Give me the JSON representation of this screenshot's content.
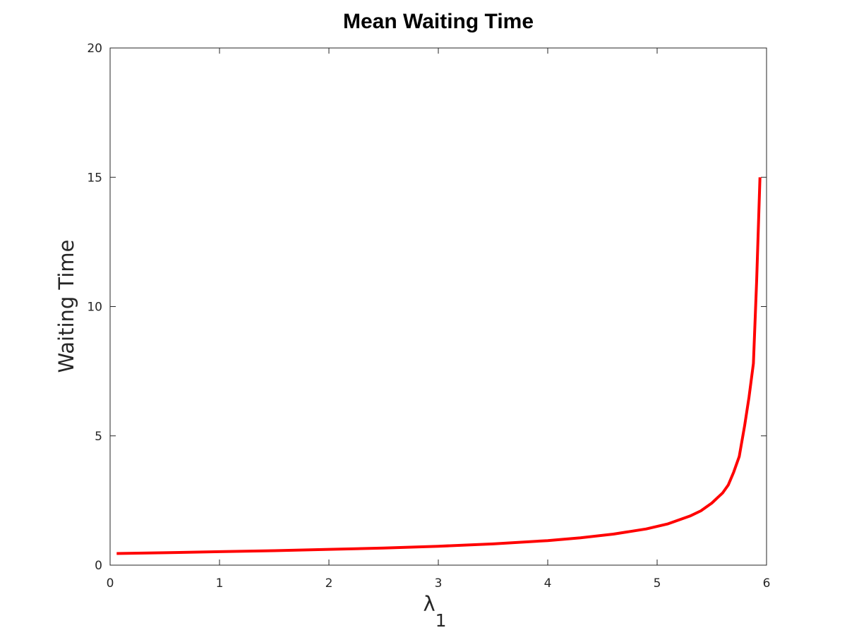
{
  "chart_data": {
    "type": "line",
    "title": "Mean Waiting Time",
    "xlabel": {
      "main": "λ",
      "subscript": "1"
    },
    "ylabel": "Waiting Time",
    "xlim": [
      0,
      6
    ],
    "ylim": [
      0,
      20
    ],
    "xticks": [
      "0",
      "1",
      "2",
      "3",
      "4",
      "5",
      "6"
    ],
    "yticks": [
      "0",
      "5",
      "10",
      "15",
      "20"
    ],
    "grid": false,
    "series": [
      {
        "color": "#ff0000",
        "x": [
          0.06,
          0.5,
          1.0,
          1.5,
          2.0,
          2.5,
          3.0,
          3.5,
          4.0,
          4.3,
          4.6,
          4.9,
          5.1,
          5.3,
          5.4,
          5.5,
          5.6,
          5.65,
          5.7,
          5.75,
          5.8,
          5.84,
          5.88,
          5.91,
          5.94
        ],
        "y": [
          0.45,
          0.48,
          0.52,
          0.56,
          0.61,
          0.66,
          0.73,
          0.82,
          0.95,
          1.06,
          1.2,
          1.4,
          1.6,
          1.9,
          2.1,
          2.4,
          2.8,
          3.1,
          3.6,
          4.2,
          5.4,
          6.5,
          7.8,
          11.0,
          15.0
        ]
      }
    ]
  }
}
